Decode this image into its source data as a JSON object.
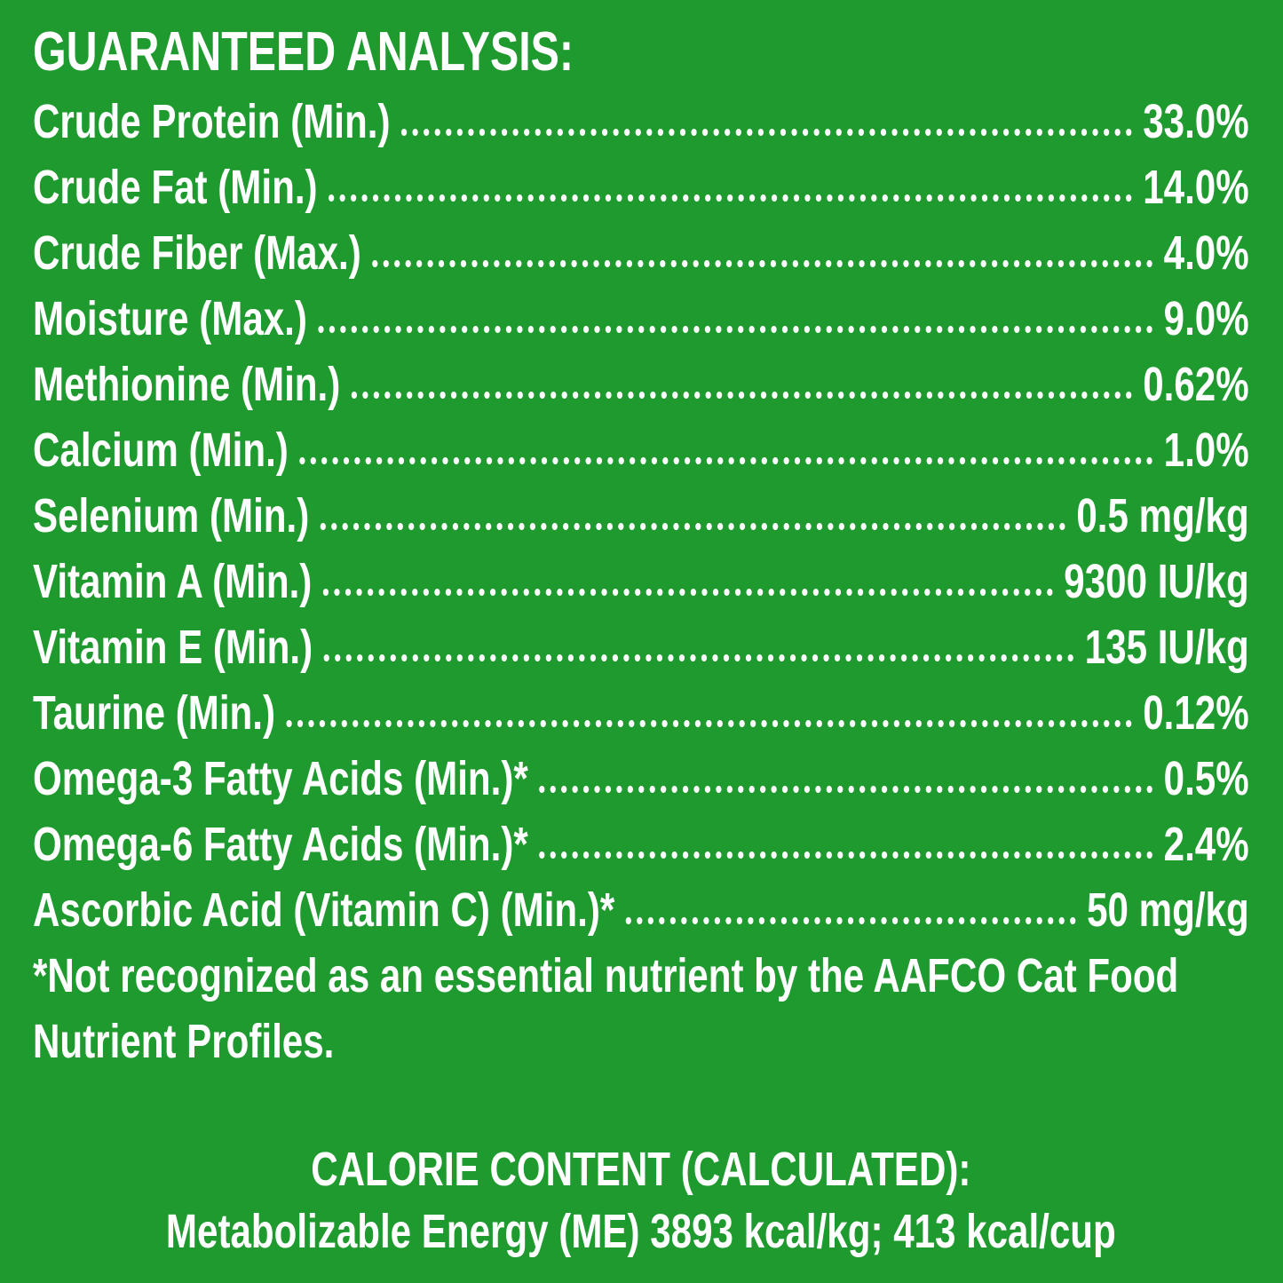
{
  "title": "GUARANTEED ANALYSIS:",
  "rows": [
    {
      "label": "Crude Protein (Min.)",
      "value": "33.0%"
    },
    {
      "label": "Crude Fat (Min.)",
      "value": "14.0%"
    },
    {
      "label": "Crude Fiber (Max.)",
      "value": "4.0%"
    },
    {
      "label": "Moisture (Max.)",
      "value": "9.0%"
    },
    {
      "label": "Methionine (Min.)",
      "value": "0.62%"
    },
    {
      "label": "Calcium (Min.)",
      "value": "1.0%"
    },
    {
      "label": "Selenium (Min.)",
      "value": "0.5 mg/kg"
    },
    {
      "label": "Vitamin A (Min.)",
      "value": "9300 IU/kg"
    },
    {
      "label": "Vitamin E (Min.)",
      "value": "135 IU/kg"
    },
    {
      "label": "Taurine (Min.)",
      "value": "0.12%"
    },
    {
      "label": "Omega-3 Fatty Acids (Min.)*",
      "value": "0.5%"
    },
    {
      "label": "Omega-6 Fatty Acids (Min.)*",
      "value": "2.4%"
    },
    {
      "label": "Ascorbic Acid (Vitamin C) (Min.)*",
      "value": "50 mg/kg"
    }
  ],
  "footnote": [
    "*Not recognized as an essential nutrient by the AAFCO Cat Food",
    "Nutrient Profiles."
  ],
  "calorie": {
    "heading": "CALORIE CONTENT (CALCULATED):",
    "text": "Metabolizable Energy (ME) 3893 kcal/kg; 413 kcal/cup"
  }
}
